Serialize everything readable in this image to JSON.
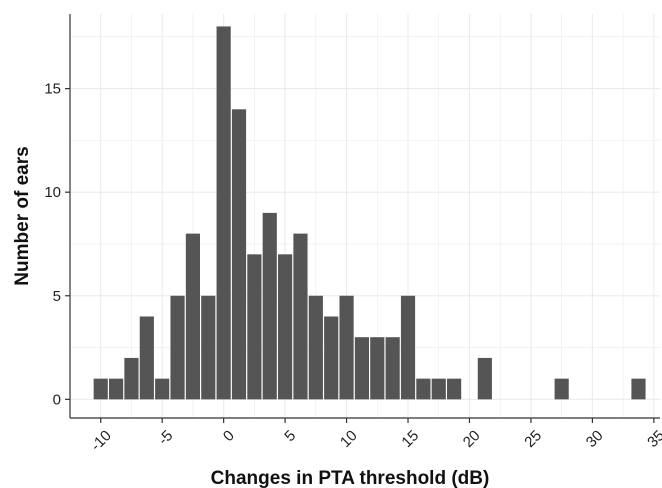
{
  "chart_data": {
    "type": "bar",
    "title": "",
    "xlabel": "Changes in PTA threshold (dB)",
    "ylabel": "Number of ears",
    "bin_width": 2.5,
    "bins": [
      -10,
      -8.75,
      -7.5,
      -6.25,
      -5,
      -3.75,
      -2.5,
      -1.25,
      0,
      1.25,
      2.5,
      3.75,
      5,
      6.25,
      7.5,
      8.75,
      10,
      11.25,
      12.5,
      13.75,
      15,
      16.25,
      17.5,
      18.75,
      21.25,
      27.5,
      33.75
    ],
    "values": [
      1,
      1,
      2,
      4,
      1,
      5,
      8,
      5,
      18,
      14,
      7,
      9,
      7,
      8,
      5,
      4,
      5,
      3,
      3,
      3,
      5,
      1,
      1,
      1,
      2,
      1,
      1
    ],
    "xlim": [
      -12.5,
      35.5
    ],
    "ylim": [
      -0.9,
      18.6
    ],
    "xticks": [
      "-10",
      "-5",
      "0",
      "5",
      "10",
      "15",
      "20",
      "25",
      "30",
      "35"
    ],
    "yticks": [
      "0",
      "5",
      "10",
      "15"
    ],
    "bar_color": "#555555",
    "grid": true,
    "grid_color": "#ebebeb",
    "legend": "none"
  }
}
